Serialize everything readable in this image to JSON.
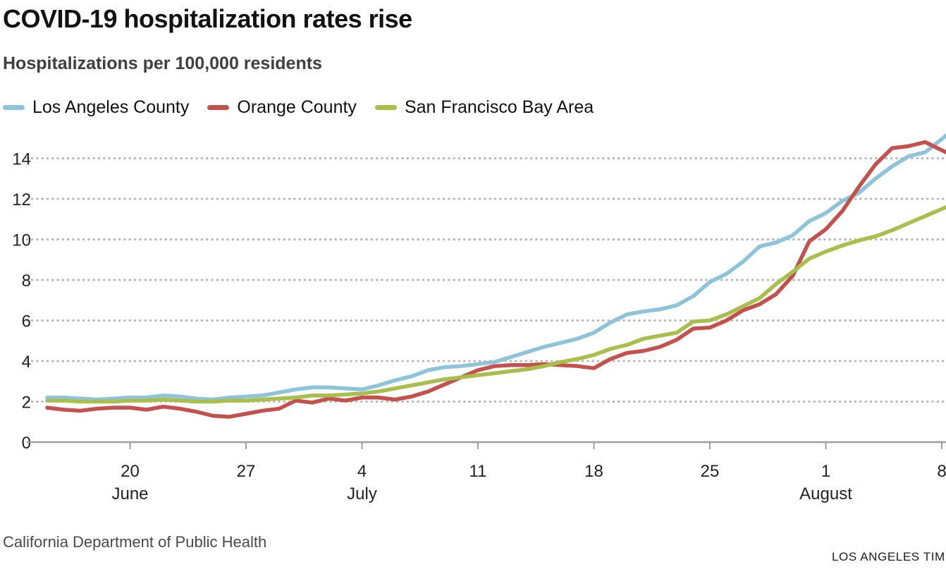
{
  "chart_data": {
    "type": "line",
    "title": "COVID-19 hospitalization rates rise",
    "subtitle": "Hospitalizations per 100,000 residents",
    "source": "California Department of Public Health",
    "credit": "LOS ANGELES TIMES",
    "x_unit": "day",
    "x_start": "June 15",
    "x_end": "August 8",
    "x_tick_labels": [
      {
        "day": 5,
        "label": "20"
      },
      {
        "day": 12,
        "label": "27"
      },
      {
        "day": 19,
        "label": "4"
      },
      {
        "day": 26,
        "label": "11"
      },
      {
        "day": 33,
        "label": "18"
      },
      {
        "day": 40,
        "label": "25"
      },
      {
        "day": 47,
        "label": "1"
      },
      {
        "day": 54,
        "label": "8"
      }
    ],
    "month_labels": [
      {
        "day": 5,
        "label": "June"
      },
      {
        "day": 19,
        "label": "July"
      },
      {
        "day": 47,
        "label": "August"
      }
    ],
    "y_ticks": [
      0,
      2,
      4,
      6,
      8,
      10,
      12,
      14
    ],
    "ylim": [
      0,
      15.5
    ],
    "grid": "dotted-horizontal",
    "legend_position": "top-left",
    "grid_color": "#b5b5b5",
    "axis_color": "#9e9e9e",
    "axis_text_color": "#222222",
    "series": [
      {
        "name": "Los Angeles County",
        "color": "#8dc3db",
        "values": [
          2.2,
          2.2,
          2.15,
          2.1,
          2.15,
          2.2,
          2.2,
          2.3,
          2.25,
          2.15,
          2.1,
          2.2,
          2.25,
          2.3,
          2.45,
          2.6,
          2.7,
          2.7,
          2.65,
          2.6,
          2.8,
          3.05,
          3.25,
          3.55,
          3.7,
          3.75,
          3.85,
          3.95,
          4.2,
          4.45,
          4.7,
          4.9,
          5.1,
          5.4,
          5.9,
          6.3,
          6.45,
          6.55,
          6.75,
          7.2,
          7.9,
          8.3,
          8.9,
          9.65,
          9.85,
          10.2,
          10.9,
          11.3,
          11.9,
          12.3,
          13.0,
          13.6,
          14.1,
          14.3,
          14.95
        ]
      },
      {
        "name": "Orange County",
        "color": "#c5514d",
        "values": [
          1.7,
          1.6,
          1.55,
          1.65,
          1.7,
          1.7,
          1.6,
          1.75,
          1.65,
          1.5,
          1.3,
          1.25,
          1.4,
          1.55,
          1.65,
          2.05,
          1.95,
          2.15,
          2.05,
          2.2,
          2.2,
          2.1,
          2.25,
          2.5,
          2.85,
          3.2,
          3.55,
          3.75,
          3.8,
          3.8,
          3.85,
          3.8,
          3.75,
          3.65,
          4.1,
          4.4,
          4.5,
          4.7,
          5.05,
          5.6,
          5.65,
          6.0,
          6.5,
          6.8,
          7.3,
          8.2,
          9.9,
          10.5,
          11.4,
          12.6,
          13.7,
          14.5,
          14.6,
          14.8,
          14.4
        ]
      },
      {
        "name": "San Francisco Bay Area",
        "color": "#a9bf4b",
        "values": [
          2.05,
          2.05,
          2.0,
          2.0,
          2.0,
          2.05,
          2.05,
          2.1,
          2.05,
          2.0,
          2.0,
          2.05,
          2.05,
          2.1,
          2.15,
          2.2,
          2.3,
          2.3,
          2.35,
          2.4,
          2.5,
          2.65,
          2.8,
          2.95,
          3.1,
          3.2,
          3.3,
          3.4,
          3.5,
          3.6,
          3.75,
          3.95,
          4.1,
          4.3,
          4.6,
          4.8,
          5.1,
          5.25,
          5.4,
          5.95,
          6.0,
          6.3,
          6.7,
          7.1,
          7.8,
          8.4,
          9.05,
          9.4,
          9.7,
          9.95,
          10.15,
          10.45,
          10.8,
          11.15,
          11.5
        ]
      }
    ]
  }
}
